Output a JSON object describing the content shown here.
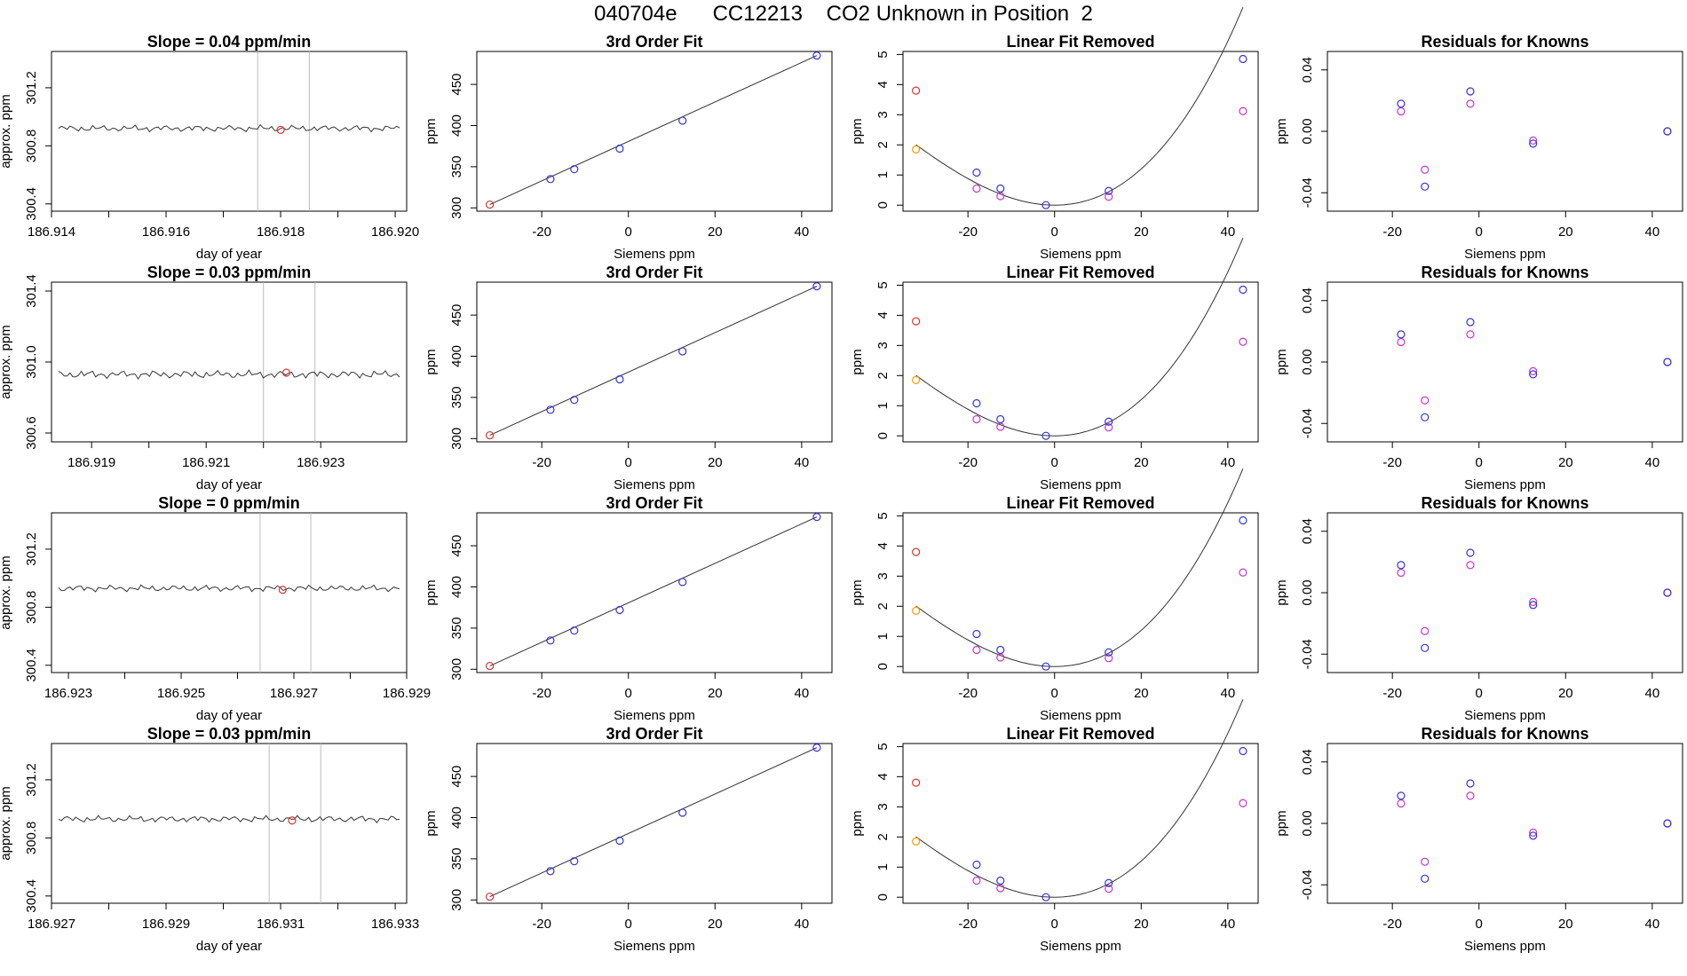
{
  "title": "040704e      CC12213    CO2 Unknown in Position  2",
  "colors": {
    "line": "#333333",
    "known": "#3333dd",
    "alt": "#cc33cc",
    "unknown": "#dd3333",
    "orange": "#ff9900",
    "vline": "#bbbbbb"
  },
  "labels": {
    "slope_title_prefix": "Slope = ",
    "slope_title_suffix": "  ppm/min",
    "fit_title": "3rd Order Fit",
    "lin_title": "Linear Fit Removed",
    "res_title": "Residuals for Knowns",
    "x_time": "day of year",
    "y_time": "approx. ppm",
    "x_siemens": "Siemens ppm",
    "y_ppm": "ppm"
  },
  "chart_data": [
    {
      "row": 0,
      "type": "line",
      "title": "Slope =  0.04  ppm/min",
      "slope": "0.04",
      "xlabel": "day of year",
      "ylabel": "approx. ppm",
      "x_ticks": [
        "186.914",
        "186.916",
        "186.918",
        "186.920"
      ],
      "y_ticks": [
        "300.4",
        "300.8",
        "301.2"
      ],
      "xlim": [
        186.914,
        186.9202
      ],
      "ylim": [
        300.35,
        301.45
      ],
      "trace_level": 300.92,
      "marker": {
        "x": 186.918,
        "y": 300.91
      },
      "vlines": [
        186.9176,
        186.9185
      ]
    },
    {
      "row": 1,
      "type": "line",
      "title": "Slope =  0.03  ppm/min",
      "slope": "0.03",
      "xlabel": "day of year",
      "ylabel": "approx. ppm",
      "x_ticks": [
        "186.919",
        "186.921",
        "186.923"
      ],
      "y_ticks": [
        "300.6",
        "301.0",
        "301.4"
      ],
      "xlim": [
        186.9183,
        186.9245
      ],
      "ylim": [
        300.55,
        301.45
      ],
      "trace_level": 300.93,
      "marker": {
        "x": 186.9224,
        "y": 300.94
      },
      "vlines": [
        186.922,
        186.9229
      ]
    },
    {
      "row": 2,
      "type": "line",
      "title": "Slope =  0  ppm/min",
      "slope": "0",
      "xlabel": "day of year",
      "ylabel": "approx. ppm",
      "x_ticks": [
        "186.923",
        "186.925",
        "186.927",
        "186.929"
      ],
      "y_ticks": [
        "300.4",
        "300.8",
        "301.2"
      ],
      "xlim": [
        186.9227,
        186.929
      ],
      "ylim": [
        300.35,
        301.45
      ],
      "trace_level": 300.93,
      "marker": {
        "x": 186.9268,
        "y": 300.92
      },
      "vlines": [
        186.9264,
        186.9273
      ]
    },
    {
      "row": 3,
      "type": "line",
      "title": "Slope =  0.03  ppm/min",
      "slope": "0.03",
      "xlabel": "day of year",
      "ylabel": "approx. ppm",
      "x_ticks": [
        "186.927",
        "186.929",
        "186.931",
        "186.933"
      ],
      "y_ticks": [
        "300.4",
        "300.8",
        "301.2"
      ],
      "xlim": [
        186.927,
        186.9332
      ],
      "ylim": [
        300.35,
        301.45
      ],
      "trace_level": 300.93,
      "marker": {
        "x": 186.9312,
        "y": 300.92
      },
      "vlines": [
        186.9308,
        186.9317
      ]
    }
  ],
  "fit_data": {
    "type": "scatter",
    "title": "3rd Order Fit",
    "xlabel": "Siemens ppm",
    "ylabel": "ppm",
    "x_ticks": [
      -20,
      0,
      20,
      40
    ],
    "y_ticks": [
      300,
      350,
      400,
      450
    ],
    "xlim": [
      -35,
      47
    ],
    "ylim": [
      296,
      490
    ],
    "known": [
      [
        -18,
        335
      ],
      [
        -12.5,
        347
      ],
      [
        -2,
        372
      ],
      [
        12.5,
        406
      ],
      [
        43.5,
        485
      ]
    ],
    "unknown": [
      [
        -32,
        304
      ]
    ]
  },
  "linear_data": {
    "type": "scatter",
    "title": "Linear Fit Removed",
    "xlabel": "Siemens ppm",
    "ylabel": "ppm",
    "x_ticks": [
      -20,
      0,
      20,
      40
    ],
    "y_ticks": [
      0,
      1,
      2,
      3,
      4,
      5
    ],
    "xlim": [
      -35,
      47
    ],
    "ylim": [
      -0.2,
      5.1
    ],
    "known": [
      [
        -18,
        1.08
      ],
      [
        -12.5,
        0.55
      ],
      [
        -2,
        0.0
      ],
      [
        12.5,
        0.47
      ],
      [
        43.5,
        4.85
      ]
    ],
    "alt": [
      [
        -18,
        0.55
      ],
      [
        -12.5,
        0.3
      ],
      [
        12.5,
        0.28
      ],
      [
        43.5,
        3.12
      ]
    ],
    "unknown": [
      [
        -32,
        3.8
      ]
    ],
    "orange": [
      [
        -32,
        1.85
      ]
    ],
    "curve_vertex": [
      0,
      0
    ],
    "curve_a": 0.0026
  },
  "resid_data": {
    "type": "scatter",
    "title": "Residuals for Knowns",
    "xlabel": "Siemens ppm",
    "ylabel": "ppm",
    "x_ticks": [
      -20,
      0,
      20,
      40
    ],
    "y_ticks": [
      "-0.04",
      "0.00",
      "0.04"
    ],
    "y_tick_values": [
      -0.04,
      0.0,
      0.04
    ],
    "xlim": [
      -35,
      47
    ],
    "ylim": [
      -0.052,
      0.052
    ],
    "known": [
      [
        -18,
        0.018
      ],
      [
        -12.5,
        -0.036
      ],
      [
        -2,
        0.026
      ],
      [
        12.5,
        -0.008
      ],
      [
        43.5,
        0.0
      ]
    ],
    "alt": [
      [
        -18,
        0.013
      ],
      [
        -12.5,
        -0.025
      ],
      [
        -2,
        0.018
      ],
      [
        12.5,
        -0.006
      ],
      [
        43.5,
        0.0
      ]
    ]
  }
}
